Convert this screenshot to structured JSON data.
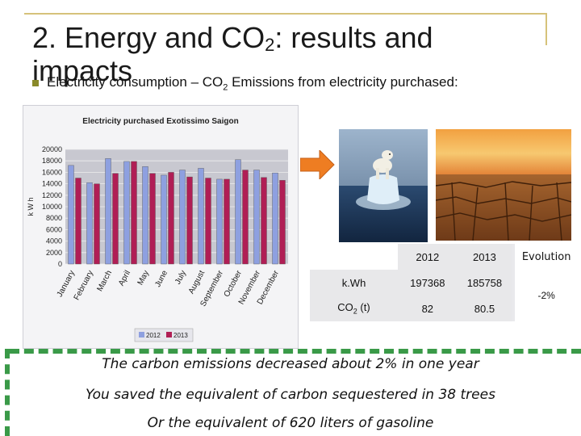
{
  "slide": {
    "title_main": "2. Energy and CO",
    "title_sub": "2",
    "title_end": ": results and",
    "title_cont": "impacts",
    "bullet": {
      "text_before": "Electricity consumption – CO",
      "sub": "2",
      "text_after": " Emissions from electricity purchased:"
    }
  },
  "chart_data": {
    "type": "bar",
    "title": "Electricity purchased Exotissimo Saigon",
    "ylabel": "k W h",
    "ylim": [
      0,
      20000
    ],
    "yticks": [
      0,
      2000,
      4000,
      6000,
      8000,
      10000,
      12000,
      14000,
      16000,
      18000,
      20000
    ],
    "categories": [
      "January",
      "February",
      "March",
      "April",
      "May",
      "June",
      "July",
      "August",
      "September",
      "October",
      "November",
      "December"
    ],
    "series": [
      {
        "name": "2012",
        "color": "#8ea0e0",
        "values": [
          17200,
          14200,
          18400,
          17900,
          17000,
          15500,
          16400,
          16700,
          14800,
          18200,
          16400,
          15900
        ]
      },
      {
        "name": "2013",
        "color": "#b01e55",
        "values": [
          15000,
          14000,
          15800,
          17900,
          15800,
          16000,
          15200,
          15000,
          14800,
          16400,
          15100,
          14600
        ]
      }
    ],
    "legend": "bottom"
  },
  "table": {
    "header": [
      "",
      "2012",
      "2013",
      "Evolution"
    ],
    "rows": [
      {
        "label": "k.Wh",
        "v2012": "197368",
        "v2013": "185758"
      },
      {
        "label_before": "CO",
        "label_sub": "2",
        "label_after": " (t)",
        "v2012": "82",
        "v2013": "80.5"
      }
    ],
    "evolution": "-2%"
  },
  "messages": [
    "The carbon emissions decreased about 2% in one year",
    "You saved the equivalent of carbon sequestered in 38 trees",
    "Or the equivalent of 620 liters of gasoline"
  ],
  "colors": {
    "accent_green": "#3a9a48",
    "arrow_orange": "#ee7d22",
    "rule_gold": "#d6c27a"
  },
  "icons": {
    "arrow": "right-arrow-icon",
    "bullet": "square-bullet-icon"
  }
}
